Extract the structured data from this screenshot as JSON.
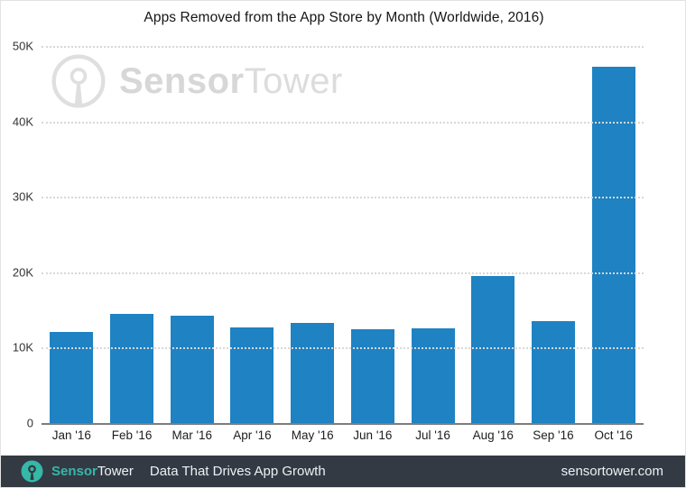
{
  "header": {
    "title": "Apps Removed from the App Store by Month (Worldwide, 2016)"
  },
  "watermark": {
    "logo": "sensortower-radio-tower-logo",
    "brand_bold": "Sensor",
    "brand_light": "Tower"
  },
  "chart_data": {
    "type": "bar",
    "title": "Apps Removed from the App Store by Month (Worldwide, 2016)",
    "xlabel": "",
    "ylabel": "",
    "categories": [
      "Jan '16",
      "Feb '16",
      "Mar '16",
      "Apr '16",
      "May '16",
      "Jun '16",
      "Jul '16",
      "Aug '16",
      "Sep '16",
      "Oct '16"
    ],
    "values": [
      12100,
      14500,
      14200,
      12700,
      13300,
      12400,
      12600,
      19500,
      13500,
      47300
    ],
    "ylim": [
      0,
      50000
    ],
    "yticks": [
      {
        "label": "50K",
        "value": 50000
      },
      {
        "label": "40K",
        "value": 40000
      },
      {
        "label": "30K",
        "value": 30000
      },
      {
        "label": "20K",
        "value": 20000
      },
      {
        "label": "10K",
        "value": 10000
      },
      {
        "label": "0",
        "value": 0
      }
    ],
    "grid": "horizontal-dotted",
    "legend": "none",
    "bar_color": "#1e82c3"
  },
  "footer": {
    "brand_bold": "Sensor",
    "brand_light": "Tower",
    "tagline": "Data That Drives App Growth",
    "website": "sensortower.com"
  },
  "colors": {
    "bar": "#1e82c3",
    "footer_bg": "#333a44",
    "brand_teal": "#35b8a8",
    "footer_text": "#eef1f3",
    "watermark_gray": "#dcdcdc",
    "axis_line": "#7c7c7c",
    "grid_dots": "#d8d8d8",
    "tick_text": "#333333"
  }
}
